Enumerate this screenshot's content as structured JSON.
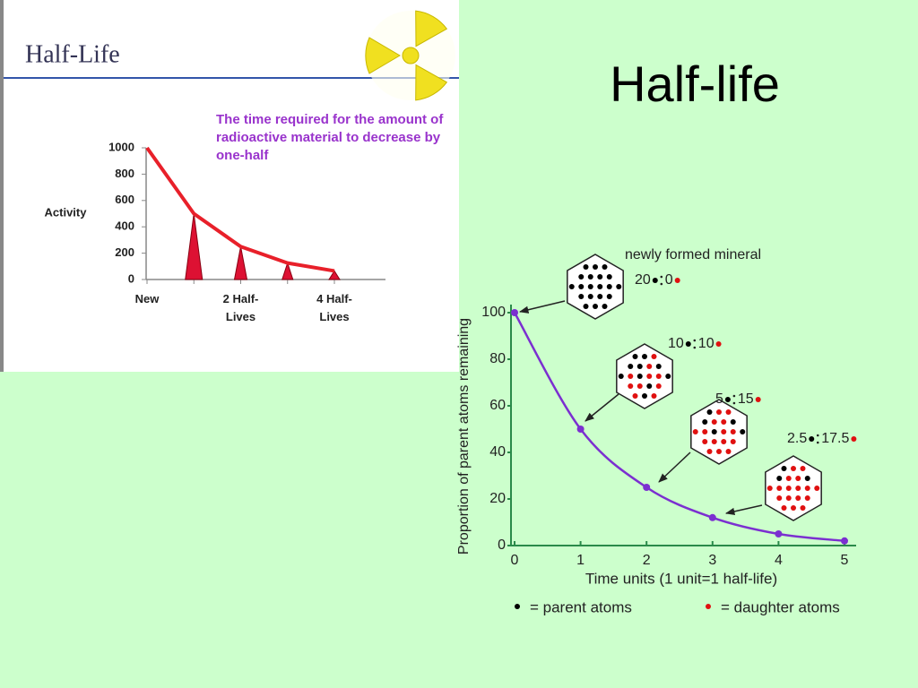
{
  "title": "Half-life",
  "chart_data": [
    {
      "type": "line",
      "title": "Half-Life",
      "ylabel": "Activity",
      "annotation": "The time required for the amount of radioactive material to decrease by one-half",
      "categories": [
        "New",
        null,
        "2 Half-Lives",
        null,
        "4 Half-Lives"
      ],
      "values": [
        1000,
        500,
        250,
        125,
        65
      ],
      "color": "#e8202a",
      "ylim": [
        0,
        1000
      ],
      "yticks": [
        0,
        200,
        400,
        600,
        800,
        1000
      ]
    },
    {
      "type": "line",
      "xlabel": "Time units (1 unit=1 half-life)",
      "ylabel": "Proportion of parent atoms remaining",
      "x": [
        0,
        1,
        2,
        3,
        4,
        5
      ],
      "values": [
        100,
        50,
        25,
        12,
        5,
        2
      ],
      "color": "#7b2fd0",
      "xlim": [
        0,
        5
      ],
      "ylim": [
        0,
        100
      ],
      "xticks": [
        0,
        1,
        2,
        3,
        4,
        5
      ],
      "yticks": [
        0,
        20,
        40,
        60,
        80,
        100
      ],
      "minerals": [
        {
          "label": "newly formed mineral",
          "parent": 20,
          "daughter": 0
        },
        {
          "parent": 10,
          "daughter": 10
        },
        {
          "parent": 5,
          "daughter": 15
        },
        {
          "parent": 2.5,
          "daughter": 17.5
        }
      ],
      "legend": [
        {
          "name": "= parent atoms",
          "color": "#000000"
        },
        {
          "name": "= daughter atoms",
          "color": "#e01010"
        }
      ]
    }
  ]
}
